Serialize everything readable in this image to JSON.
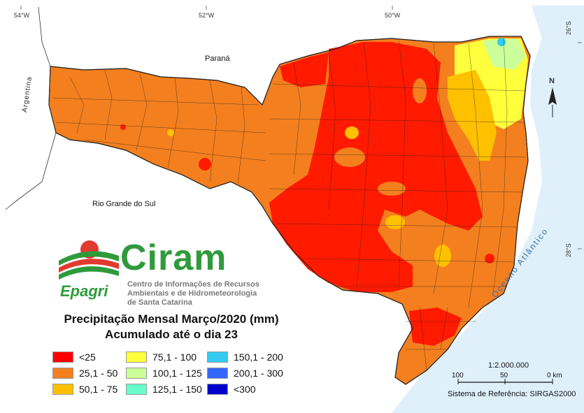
{
  "title": {
    "line1": "Precipitação Mensal Março/2020 (mm)",
    "line2": "Acumulado até o dia 23"
  },
  "logo": {
    "name": "Ciram",
    "subtitle_lines": [
      "Centro de Informações de Recursos",
      "Ambientais e de Hidrometeorologia",
      "de Santa Catarina"
    ],
    "org": "Epagri"
  },
  "legend": [
    {
      "label": "<25",
      "color": "#ff0000"
    },
    {
      "label": "25,1 - 50",
      "color": "#f47f1e"
    },
    {
      "label": "50,1 - 75",
      "color": "#ffc000"
    },
    {
      "label": "75,1 - 100",
      "color": "#ffff3c"
    },
    {
      "label": "100,1 - 125",
      "color": "#ccff99"
    },
    {
      "label": "125,1 - 150",
      "color": "#66ffcc"
    },
    {
      "label": "150,1 - 200",
      "color": "#33ccf0"
    },
    {
      "label": "200,1 - 300",
      "color": "#3366ff"
    },
    {
      "label": "<300",
      "color": "#0000cc"
    }
  ],
  "graticule": {
    "lon_54": "54°W",
    "lon_52": "52°W",
    "lon_50": "50°W",
    "lat_26": "26°S",
    "lat_28": "28°S"
  },
  "places": {
    "parana": "Paraná",
    "rio_grande_do_sul": "Rio Grande do Sul",
    "argentina": "Argentina",
    "ocean": "Oceano Atlântico"
  },
  "north_label": "N",
  "scale": {
    "ratio": "1:2.000.000",
    "t0": "100",
    "t1": "50",
    "t2": "0 km"
  },
  "reference": "Sistema de Referência: SIRGAS2000",
  "colors": {
    "ocean": "#dff0fa",
    "land_outside": "#ffffff",
    "border": "#222222"
  }
}
